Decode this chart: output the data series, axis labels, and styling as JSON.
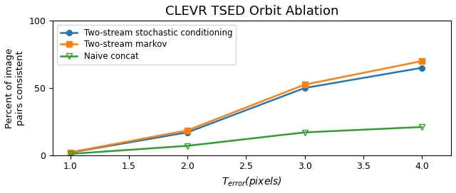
{
  "title": "CLEVR TSED Orbit Ablation",
  "xlabel": "$T_{error}$(pixels)",
  "ylabel": "Percent of image\npairs consistent",
  "x": [
    1.0,
    2.0,
    3.0,
    4.0
  ],
  "series": [
    {
      "label": "Two-stream stochastic conditioning",
      "y": [
        2.0,
        17.0,
        50.0,
        65.0
      ],
      "color": "#1f77b4",
      "marker": "o",
      "marker_filled": true,
      "linestyle": "-"
    },
    {
      "label": "Two-stream markov",
      "y": [
        2.2,
        18.5,
        52.5,
        70.0
      ],
      "color": "#ff7f0e",
      "marker": "s",
      "marker_filled": true,
      "linestyle": "-"
    },
    {
      "label": "Naive concat",
      "y": [
        1.0,
        7.0,
        17.0,
        21.0
      ],
      "color": "#2ca02c",
      "marker": "v",
      "marker_filled": false,
      "linestyle": "-"
    }
  ],
  "xlim": [
    0.85,
    4.25
  ],
  "ylim": [
    0,
    100
  ],
  "xticks": [
    1.0,
    1.5,
    2.0,
    2.5,
    3.0,
    3.5,
    4.0
  ],
  "yticks": [
    0,
    50,
    100
  ],
  "legend_loc": "upper left",
  "title_fontsize": 13,
  "label_fontsize": 10,
  "tick_fontsize": 9
}
